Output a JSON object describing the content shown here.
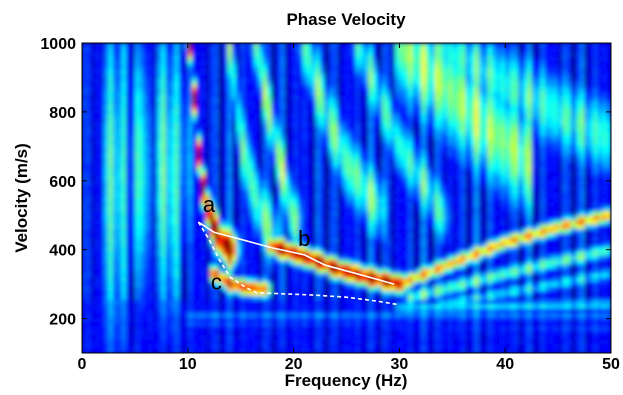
{
  "chart_data": {
    "type": "heatmap",
    "title": "Phase Velocity",
    "xlabel": "Frequency (Hz)",
    "ylabel": "Velocity (m/s)",
    "xlim": [
      0,
      50
    ],
    "ylim": [
      100,
      1000
    ],
    "xticks": [
      0,
      10,
      20,
      30,
      40,
      50
    ],
    "xtick_labels": [
      "0",
      "10",
      "20",
      "30",
      "40",
      "50"
    ],
    "yticks": [
      200,
      400,
      600,
      800,
      1000
    ],
    "ytick_labels": [
      "200",
      "400",
      "600",
      "800",
      "1000"
    ],
    "colormap": "jet",
    "grid": false,
    "series": [
      {
        "style": "solid",
        "color": "#ffffff",
        "x": [
          11.0,
          12.5,
          15.0,
          18.0,
          21.0,
          23.0,
          26.0,
          29.5
        ],
        "y": [
          480,
          450,
          430,
          405,
          385,
          355,
          330,
          300
        ]
      },
      {
        "style": "dashed",
        "color": "#ffffff",
        "x": [
          11.0,
          12.0,
          13.0,
          14.0,
          15.5,
          16.5,
          19.0,
          22.0,
          25.0,
          28.0,
          30.0
        ],
        "y": [
          480,
          430,
          370,
          320,
          290,
          275,
          272,
          268,
          262,
          250,
          240
        ]
      }
    ],
    "annotations": [
      {
        "text": "a",
        "x": 12.0,
        "y": 510
      },
      {
        "text": "b",
        "x": 21.0,
        "y": 410
      },
      {
        "text": "c",
        "x": 12.7,
        "y": 285
      }
    ]
  }
}
